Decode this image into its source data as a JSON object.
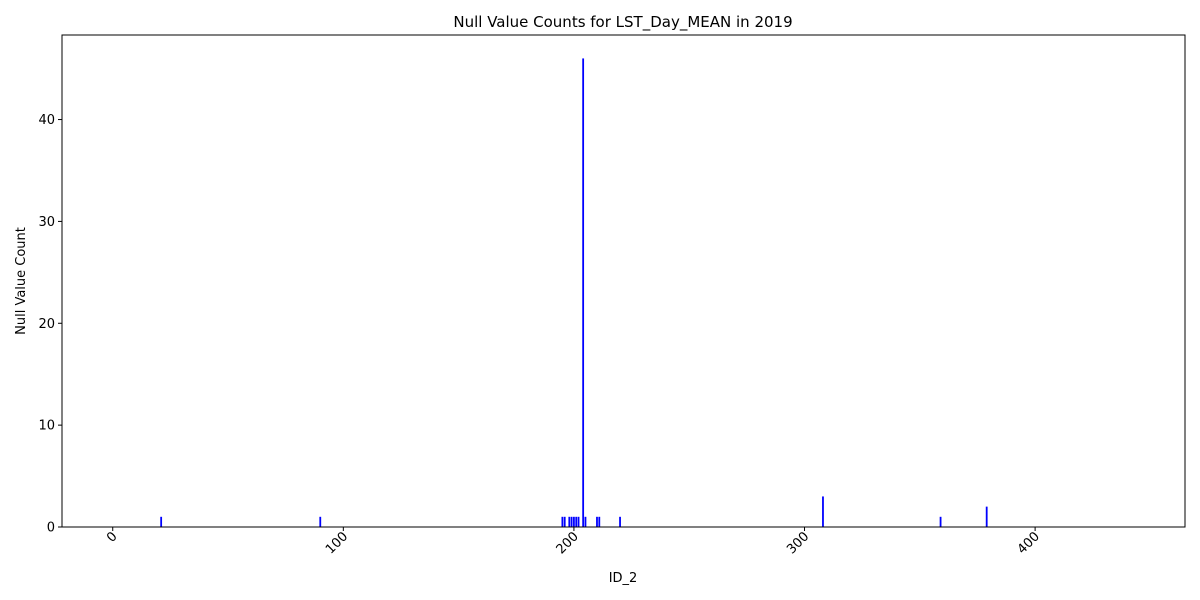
{
  "chart_data": {
    "type": "bar",
    "title": "Null Value Counts for LST_Day_MEAN in 2019",
    "xlabel": "ID_2",
    "ylabel": "Null Value Count",
    "xlim": [
      -22,
      465
    ],
    "ylim": [
      0,
      48.3
    ],
    "x_ticks": [
      0,
      100,
      200,
      300,
      400
    ],
    "y_ticks": [
      0,
      10,
      20,
      30,
      40
    ],
    "x_tick_rotation": -45,
    "grid": false,
    "bar_color": "#0000ff",
    "bars": [
      {
        "x": 21,
        "y": 1
      },
      {
        "x": 90,
        "y": 1
      },
      {
        "x": 195,
        "y": 1
      },
      {
        "x": 196,
        "y": 1
      },
      {
        "x": 198,
        "y": 1
      },
      {
        "x": 199,
        "y": 1
      },
      {
        "x": 200,
        "y": 1
      },
      {
        "x": 201,
        "y": 1
      },
      {
        "x": 202,
        "y": 1
      },
      {
        "x": 204,
        "y": 46
      },
      {
        "x": 205,
        "y": 1
      },
      {
        "x": 210,
        "y": 1
      },
      {
        "x": 211,
        "y": 1
      },
      {
        "x": 220,
        "y": 1
      },
      {
        "x": 308,
        "y": 3
      },
      {
        "x": 359,
        "y": 1
      },
      {
        "x": 379,
        "y": 2
      }
    ]
  }
}
